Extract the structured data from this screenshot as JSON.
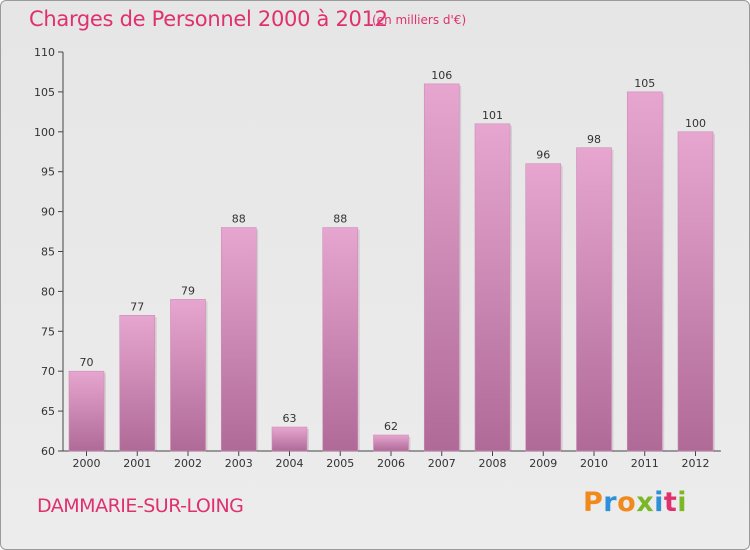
{
  "header": {
    "title": "Charges de Personnel 2000 à 2012",
    "subtitle": "(en milliers d'€)"
  },
  "footer": {
    "city": "DAMMARIE-SUR-LOING",
    "brand": "Proxiti"
  },
  "colors": {
    "title": "#e0306e",
    "bar_top": "#e6a6cf",
    "bar_bottom": "#b06a98",
    "bar_edge": "#cf8ab8",
    "axis": "#444444",
    "brand_letters": [
      "#f08a1c",
      "#2f8fd8",
      "#f08a1c",
      "#7ab828",
      "#2f8fd8",
      "#e0306e",
      "#7ab828"
    ]
  },
  "chart_data": {
    "type": "bar",
    "title": "Charges de Personnel 2000 à 2012",
    "subtitle": "(en milliers d'€)",
    "xlabel": "",
    "ylabel": "",
    "categories": [
      "2000",
      "2001",
      "2002",
      "2003",
      "2004",
      "2005",
      "2006",
      "2007",
      "2008",
      "2009",
      "2010",
      "2011",
      "2012"
    ],
    "values": [
      70,
      77,
      79,
      88,
      63,
      88,
      62,
      106,
      101,
      96,
      98,
      105,
      100
    ],
    "ylim": [
      60,
      110
    ],
    "yticks": [
      60,
      65,
      70,
      75,
      80,
      85,
      90,
      95,
      100,
      105,
      110
    ],
    "grid": false,
    "legend": "none",
    "data_labels": true
  }
}
